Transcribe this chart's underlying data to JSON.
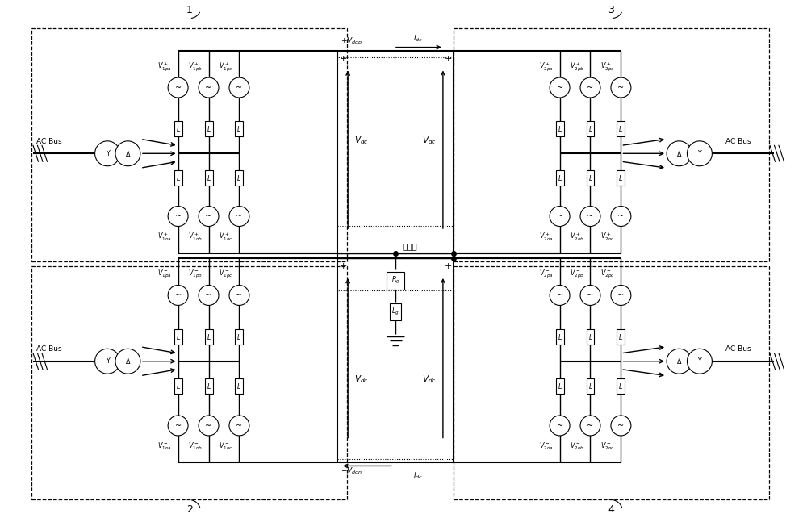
{
  "bg_color": "#ffffff",
  "line_color": "#000000",
  "neutral_label": "中性点",
  "box_labels": [
    "1",
    "2",
    "3",
    "4"
  ],
  "ac_bus": "AC Bus",
  "vdcp": "+V_{dcp}",
  "vdcn": "-V_{dcn}",
  "idc": "I_{dc}",
  "vdc": "V_{dc}",
  "rg": "R_g",
  "lg": "L_g",
  "phase_labels_1p_up": [
    "V^+_{1pa}",
    "V^+_{1pb}",
    "V^+_{1pc}"
  ],
  "phase_labels_1p_dn": [
    "V^+_{1na}",
    "V^+_{1nb}",
    "V^+_{1nc}"
  ],
  "phase_labels_1n_up": [
    "V^-_{1pa}",
    "V^-_{1pb}",
    "V^-_{1pc}"
  ],
  "phase_labels_1n_dn": [
    "V^-_{1na}",
    "V^-_{1nb}",
    "V^-_{1nc}"
  ],
  "phase_labels_2p_up": [
    "V^+_{2pa}",
    "V^+_{2pb}",
    "V^+_{2pc}"
  ],
  "phase_labels_2p_dn": [
    "V^+_{2na}",
    "V^+_{2nb}",
    "V^+_{2nc}"
  ],
  "phase_labels_2n_up": [
    "V^-_{2pa}",
    "V^-_{2pb}",
    "V^-_{2pc}"
  ],
  "phase_labels_2n_dn": [
    "V^-_{2na}",
    "V^-_{2nb}",
    "V^-_{2nc}"
  ]
}
